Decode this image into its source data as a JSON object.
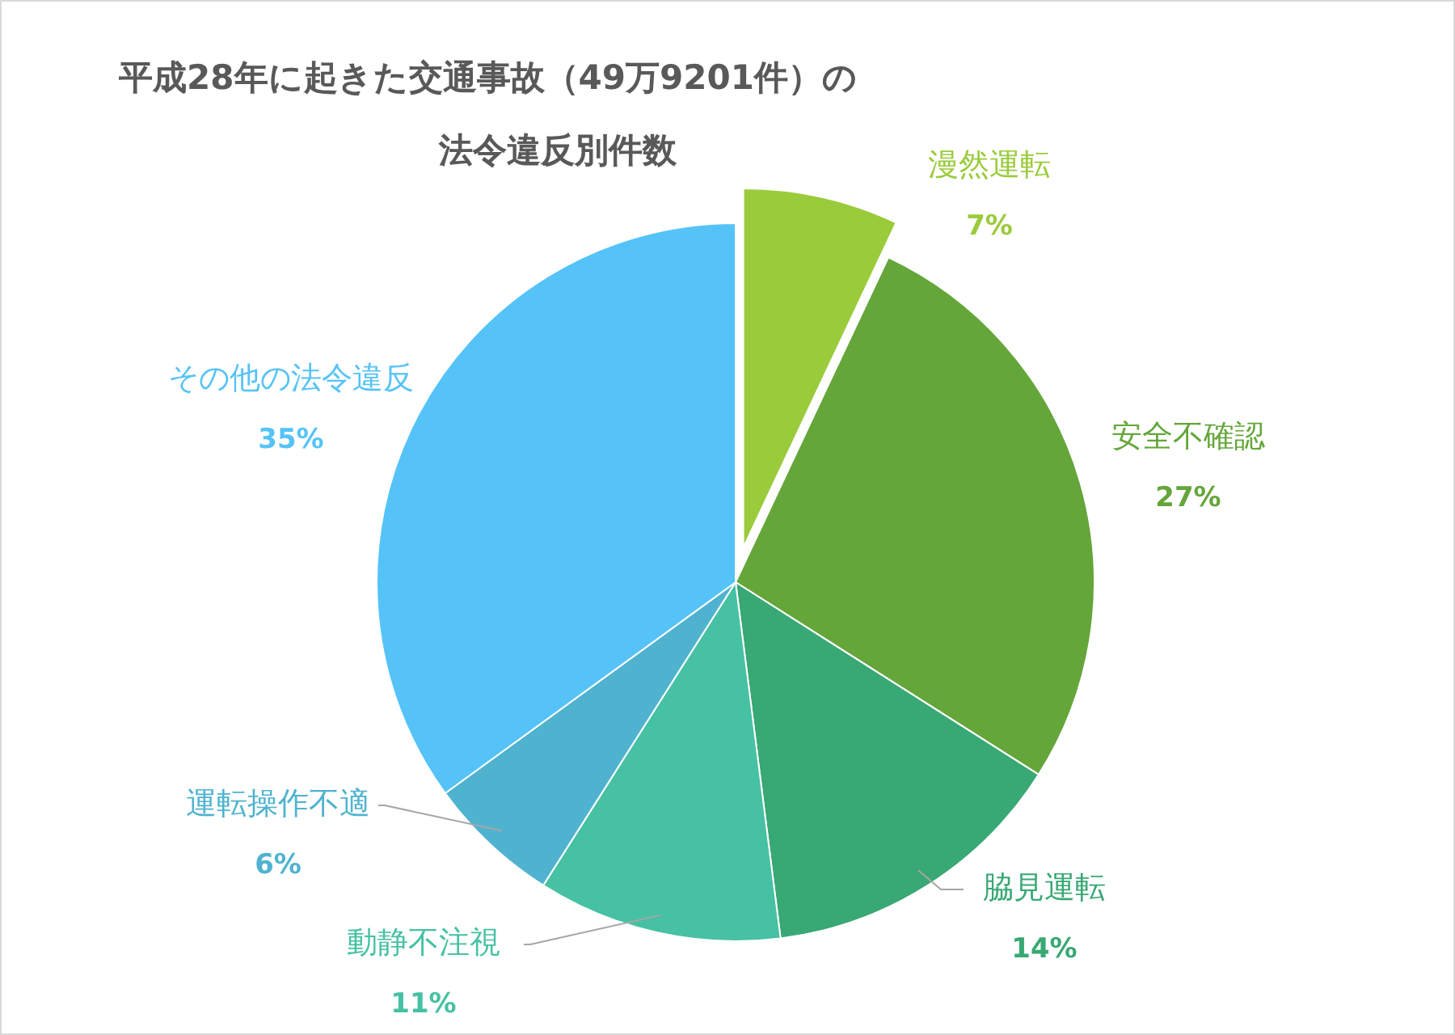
{
  "chart_data": {
    "type": "pie",
    "title": "平成28年に起きた交通事故（49万9201件）の法令違反別件数",
    "categories": [
      "漫然運転",
      "安全不確認",
      "脇見運転",
      "動静不注視",
      "運転操作不適",
      "その他の法令違反"
    ],
    "values": [
      7,
      27,
      14,
      11,
      6,
      35
    ],
    "colors": [
      "#9acb3b",
      "#65a63a",
      "#38a874",
      "#46c1a3",
      "#4fb3d0",
      "#55c3f8"
    ],
    "value_labels": [
      "7%",
      "27%",
      "14%",
      "11%",
      "6%",
      "35%"
    ]
  }
}
